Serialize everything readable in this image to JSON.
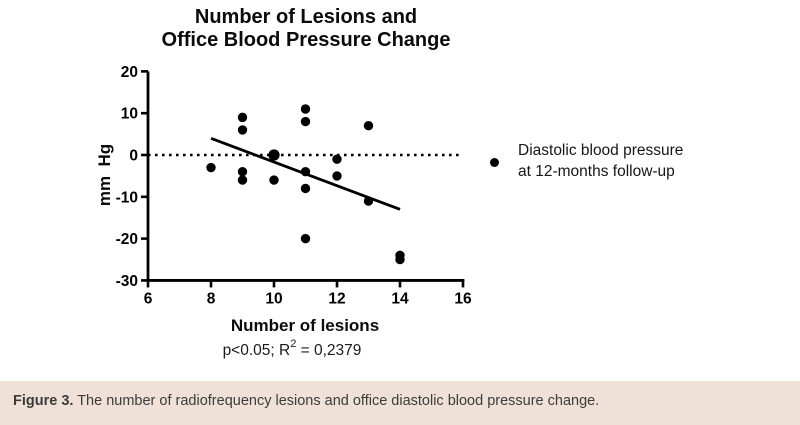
{
  "title": {
    "line1": "Number of Lesions and",
    "line2": "Office Blood Pressure Change"
  },
  "chart_data": {
    "type": "scatter",
    "title": "Number of Lesions and Office Blood Pressure Change",
    "xlabel": "Number of lesions",
    "ylabel": "mm  Hg",
    "xlim": [
      6,
      16
    ],
    "ylim": [
      -30,
      20
    ],
    "x_ticks": [
      6,
      8,
      10,
      12,
      14,
      16
    ],
    "y_ticks": [
      20,
      10,
      0,
      -10,
      -20,
      -30
    ],
    "grid": false,
    "zero_reference_line": {
      "y": 0,
      "style": "dotted"
    },
    "points": [
      [
        8,
        -3
      ],
      [
        9,
        9
      ],
      [
        9,
        6
      ],
      [
        9,
        -4
      ],
      [
        9,
        -6
      ],
      [
        10,
        0,
        1.2
      ],
      [
        10,
        -6
      ],
      [
        11,
        11
      ],
      [
        11,
        8
      ],
      [
        11,
        -4
      ],
      [
        11,
        -8
      ],
      [
        11,
        -20
      ],
      [
        12,
        -1
      ],
      [
        12,
        -5
      ],
      [
        13,
        7
      ],
      [
        13,
        -11
      ],
      [
        14,
        -24
      ],
      [
        14,
        -25
      ]
    ],
    "trend_line": {
      "x1": 8,
      "y1": 4,
      "x2": 14,
      "y2": -13
    },
    "series_label": "Diastolic blood pressure at 12-months follow-up",
    "legend_position": "right"
  },
  "stats": {
    "prefix": "p<0.05; R",
    "sup": "2",
    "suffix": " = 0,2379"
  },
  "legend": {
    "line1": "Diastolic blood pressure",
    "line2": "at 12-months follow-up"
  },
  "caption": {
    "label": "Figure 3.",
    "text": " The number of radiofrequency lesions and office diastolic blood pressure change."
  },
  "colors": {
    "ink": "#000000",
    "caption_bg": "#efe1d7",
    "caption_text": "#3c3c3c"
  }
}
